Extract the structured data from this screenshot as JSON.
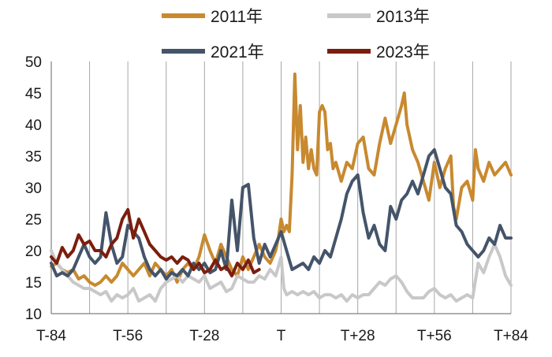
{
  "chart_data": {
    "type": "line",
    "title": "",
    "xlabel": "",
    "ylabel": "",
    "ylim": [
      10,
      50
    ],
    "yticks": [
      10,
      15,
      20,
      25,
      30,
      35,
      40,
      45,
      50
    ],
    "xlim": [
      -84,
      84
    ],
    "xticks": [
      {
        "pos": -84,
        "label": "T-84"
      },
      {
        "pos": -56,
        "label": "T-56"
      },
      {
        "pos": -28,
        "label": "T-28"
      },
      {
        "pos": 0,
        "label": "T"
      },
      {
        "pos": 28,
        "label": "T+28"
      },
      {
        "pos": 56,
        "label": "T+56"
      },
      {
        "pos": 84,
        "label": "T+84"
      }
    ],
    "grid": "vertical",
    "legend": "top",
    "series": [
      {
        "name": "2011年",
        "color": "#c8892f",
        "points": [
          [
            -84,
            17.5
          ],
          [
            -82,
            18
          ],
          [
            -80,
            17
          ],
          [
            -78,
            16.5
          ],
          [
            -76,
            17
          ],
          [
            -74,
            15.5
          ],
          [
            -72,
            16
          ],
          [
            -70,
            15
          ],
          [
            -68,
            14.5
          ],
          [
            -66,
            15
          ],
          [
            -64,
            16
          ],
          [
            -62,
            15
          ],
          [
            -60,
            16
          ],
          [
            -58,
            18
          ],
          [
            -56,
            17
          ],
          [
            -54,
            16
          ],
          [
            -52,
            17
          ],
          [
            -50,
            18
          ],
          [
            -48,
            16
          ],
          [
            -46,
            18
          ],
          [
            -44,
            17
          ],
          [
            -42,
            16
          ],
          [
            -40,
            17
          ],
          [
            -38,
            15
          ],
          [
            -36,
            17
          ],
          [
            -34,
            18
          ],
          [
            -32,
            17
          ],
          [
            -30,
            19
          ],
          [
            -28,
            22.5
          ],
          [
            -26,
            20
          ],
          [
            -24,
            18
          ],
          [
            -22,
            21
          ],
          [
            -20,
            19
          ],
          [
            -18,
            17
          ],
          [
            -16,
            16
          ],
          [
            -14,
            19
          ],
          [
            -12,
            17
          ],
          [
            -10,
            19
          ],
          [
            -8,
            21
          ],
          [
            -6,
            19
          ],
          [
            -4,
            18
          ],
          [
            -2,
            20
          ],
          [
            -1,
            22
          ],
          [
            0,
            25
          ],
          [
            1,
            23
          ],
          [
            2,
            24
          ],
          [
            3,
            23
          ],
          [
            4,
            32
          ],
          [
            5,
            48
          ],
          [
            6,
            36
          ],
          [
            7,
            43
          ],
          [
            8,
            34
          ],
          [
            9,
            38
          ],
          [
            10,
            33
          ],
          [
            11,
            36
          ],
          [
            12,
            33
          ],
          [
            13,
            32
          ],
          [
            14,
            42
          ],
          [
            15,
            43
          ],
          [
            16,
            42
          ],
          [
            17,
            36
          ],
          [
            18,
            37
          ],
          [
            19,
            33
          ],
          [
            20,
            34
          ],
          [
            22,
            31
          ],
          [
            24,
            34
          ],
          [
            26,
            33
          ],
          [
            28,
            37
          ],
          [
            30,
            38
          ],
          [
            32,
            33
          ],
          [
            34,
            32
          ],
          [
            36,
            37
          ],
          [
            38,
            41
          ],
          [
            40,
            37
          ],
          [
            42,
            40
          ],
          [
            44,
            43
          ],
          [
            45,
            45
          ],
          [
            46,
            40
          ],
          [
            48,
            36
          ],
          [
            50,
            34
          ],
          [
            52,
            31
          ],
          [
            54,
            28
          ],
          [
            56,
            34
          ],
          [
            58,
            30
          ],
          [
            60,
            33
          ],
          [
            62,
            35
          ],
          [
            63,
            27
          ],
          [
            64,
            25
          ],
          [
            66,
            30
          ],
          [
            68,
            31
          ],
          [
            70,
            28
          ],
          [
            71,
            36
          ],
          [
            72,
            33
          ],
          [
            74,
            31
          ],
          [
            76,
            34
          ],
          [
            78,
            32
          ],
          [
            80,
            33
          ],
          [
            82,
            34
          ],
          [
            84,
            32
          ]
        ]
      },
      {
        "name": "2013年",
        "color": "#c8c8c8",
        "points": [
          [
            -84,
            20
          ],
          [
            -82,
            18
          ],
          [
            -80,
            17
          ],
          [
            -78,
            16
          ],
          [
            -76,
            15
          ],
          [
            -74,
            14.5
          ],
          [
            -72,
            14
          ],
          [
            -70,
            14
          ],
          [
            -68,
            13.5
          ],
          [
            -66,
            13
          ],
          [
            -64,
            13.5
          ],
          [
            -62,
            12
          ],
          [
            -60,
            13
          ],
          [
            -58,
            12.5
          ],
          [
            -56,
            13
          ],
          [
            -54,
            14
          ],
          [
            -52,
            12
          ],
          [
            -50,
            12.5
          ],
          [
            -48,
            13
          ],
          [
            -46,
            12
          ],
          [
            -44,
            14
          ],
          [
            -42,
            15
          ],
          [
            -40,
            15.5
          ],
          [
            -38,
            16
          ],
          [
            -36,
            15
          ],
          [
            -34,
            16
          ],
          [
            -32,
            15.5
          ],
          [
            -30,
            15
          ],
          [
            -28,
            16
          ],
          [
            -26,
            14
          ],
          [
            -24,
            14.5
          ],
          [
            -22,
            15
          ],
          [
            -20,
            13.5
          ],
          [
            -18,
            14
          ],
          [
            -16,
            16
          ],
          [
            -14,
            15.5
          ],
          [
            -12,
            15
          ],
          [
            -10,
            15
          ],
          [
            -8,
            16
          ],
          [
            -6,
            15.5
          ],
          [
            -4,
            17
          ],
          [
            -2,
            16
          ],
          [
            0,
            19
          ],
          [
            1,
            14
          ],
          [
            2,
            13
          ],
          [
            4,
            13.5
          ],
          [
            6,
            13
          ],
          [
            8,
            13.5
          ],
          [
            10,
            13
          ],
          [
            12,
            13.5
          ],
          [
            14,
            12.5
          ],
          [
            16,
            13
          ],
          [
            18,
            13
          ],
          [
            20,
            12.5
          ],
          [
            22,
            13
          ],
          [
            24,
            12
          ],
          [
            26,
            13
          ],
          [
            28,
            12.5
          ],
          [
            30,
            13
          ],
          [
            32,
            13
          ],
          [
            34,
            14
          ],
          [
            36,
            15
          ],
          [
            38,
            14.5
          ],
          [
            40,
            15.5
          ],
          [
            42,
            16
          ],
          [
            44,
            15
          ],
          [
            46,
            13.5
          ],
          [
            48,
            12.5
          ],
          [
            50,
            12.5
          ],
          [
            52,
            12.5
          ],
          [
            54,
            13.5
          ],
          [
            56,
            14
          ],
          [
            58,
            13
          ],
          [
            60,
            12.5
          ],
          [
            62,
            13
          ],
          [
            64,
            12
          ],
          [
            66,
            12.5
          ],
          [
            68,
            13
          ],
          [
            70,
            12.5
          ],
          [
            72,
            18
          ],
          [
            74,
            16.5
          ],
          [
            76,
            19
          ],
          [
            78,
            21
          ],
          [
            80,
            19
          ],
          [
            82,
            16
          ],
          [
            84,
            14.5
          ]
        ]
      },
      {
        "name": "2021年",
        "color": "#44546a",
        "points": [
          [
            -84,
            18
          ],
          [
            -82,
            16
          ],
          [
            -80,
            16.5
          ],
          [
            -78,
            16
          ],
          [
            -76,
            17
          ],
          [
            -74,
            19
          ],
          [
            -72,
            21
          ],
          [
            -70,
            19
          ],
          [
            -68,
            18
          ],
          [
            -66,
            19
          ],
          [
            -64,
            26
          ],
          [
            -62,
            21
          ],
          [
            -60,
            18
          ],
          [
            -58,
            19
          ],
          [
            -56,
            24
          ],
          [
            -54,
            23
          ],
          [
            -52,
            22
          ],
          [
            -50,
            19
          ],
          [
            -48,
            17
          ],
          [
            -46,
            16
          ],
          [
            -44,
            17
          ],
          [
            -42,
            15.5
          ],
          [
            -40,
            16.5
          ],
          [
            -38,
            16
          ],
          [
            -36,
            17
          ],
          [
            -34,
            16
          ],
          [
            -32,
            18
          ],
          [
            -30,
            17
          ],
          [
            -28,
            18
          ],
          [
            -26,
            16.5
          ],
          [
            -24,
            17
          ],
          [
            -22,
            20
          ],
          [
            -20,
            17
          ],
          [
            -18,
            28
          ],
          [
            -16,
            20
          ],
          [
            -14,
            30
          ],
          [
            -12,
            30.5
          ],
          [
            -10,
            22
          ],
          [
            -8,
            18
          ],
          [
            -6,
            21
          ],
          [
            -4,
            19
          ],
          [
            -2,
            21
          ],
          [
            0,
            23
          ],
          [
            2,
            20
          ],
          [
            4,
            17
          ],
          [
            6,
            17.5
          ],
          [
            8,
            18
          ],
          [
            10,
            17
          ],
          [
            12,
            19
          ],
          [
            14,
            18
          ],
          [
            16,
            20
          ],
          [
            18,
            19
          ],
          [
            20,
            22
          ],
          [
            22,
            25
          ],
          [
            24,
            29
          ],
          [
            26,
            31
          ],
          [
            28,
            32
          ],
          [
            30,
            26
          ],
          [
            32,
            22
          ],
          [
            34,
            24
          ],
          [
            36,
            21
          ],
          [
            38,
            20
          ],
          [
            40,
            27
          ],
          [
            42,
            25
          ],
          [
            44,
            28
          ],
          [
            46,
            29
          ],
          [
            48,
            31
          ],
          [
            50,
            29
          ],
          [
            52,
            32
          ],
          [
            54,
            35
          ],
          [
            56,
            36
          ],
          [
            58,
            33
          ],
          [
            60,
            30
          ],
          [
            62,
            29
          ],
          [
            64,
            24
          ],
          [
            66,
            23
          ],
          [
            68,
            21
          ],
          [
            70,
            20
          ],
          [
            72,
            19
          ],
          [
            74,
            20
          ],
          [
            76,
            22
          ],
          [
            78,
            21
          ],
          [
            80,
            24
          ],
          [
            82,
            22
          ],
          [
            84,
            22
          ]
        ]
      },
      {
        "name": "2023年",
        "color": "#7b1e0e",
        "points": [
          [
            -84,
            19
          ],
          [
            -82,
            18
          ],
          [
            -80,
            20.5
          ],
          [
            -78,
            19
          ],
          [
            -76,
            20
          ],
          [
            -74,
            22.5
          ],
          [
            -72,
            21
          ],
          [
            -70,
            21.5
          ],
          [
            -68,
            20
          ],
          [
            -66,
            20
          ],
          [
            -64,
            19
          ],
          [
            -62,
            21
          ],
          [
            -60,
            22
          ],
          [
            -58,
            25
          ],
          [
            -56,
            26.5
          ],
          [
            -54,
            22
          ],
          [
            -52,
            25
          ],
          [
            -50,
            23
          ],
          [
            -48,
            21
          ],
          [
            -46,
            20
          ],
          [
            -44,
            19
          ],
          [
            -42,
            18.5
          ],
          [
            -40,
            19
          ],
          [
            -38,
            18
          ],
          [
            -36,
            19
          ],
          [
            -34,
            18.5
          ],
          [
            -32,
            17
          ],
          [
            -30,
            18
          ],
          [
            -28,
            16.5
          ],
          [
            -26,
            17
          ],
          [
            -24,
            18.5
          ],
          [
            -22,
            17
          ],
          [
            -20,
            17.5
          ],
          [
            -18,
            16
          ],
          [
            -16,
            18
          ],
          [
            -14,
            17
          ],
          [
            -12,
            18.5
          ],
          [
            -10,
            16.5
          ],
          [
            -8,
            17
          ]
        ]
      }
    ]
  }
}
